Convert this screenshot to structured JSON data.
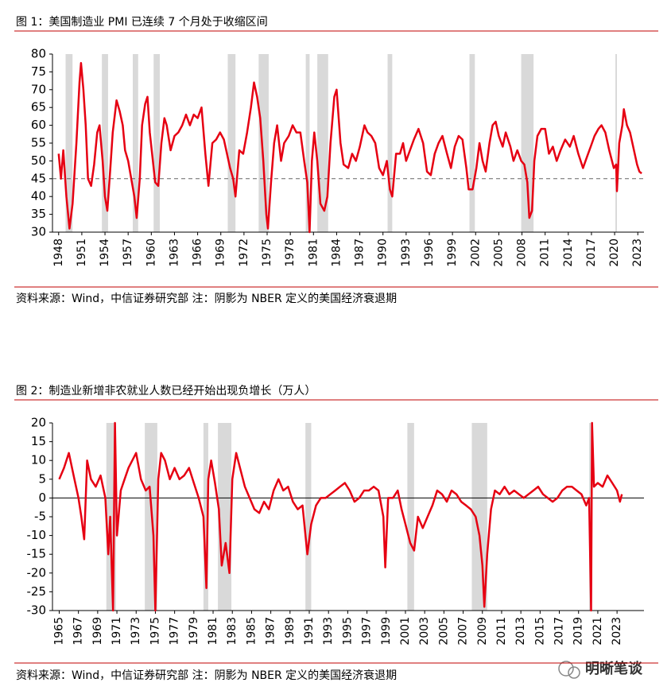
{
  "chart_data": [
    {
      "type": "line",
      "title": "图 1：美国制造业 PMI 已连续 7 个月处于收缩区间",
      "source": "资料来源：Wind，中信证券研究部  注：阴影为 NBER 定义的美国经济衰退期",
      "color": "#e60012",
      "xlim": [
        1947.2,
        2023.8
      ],
      "xticks": [
        1948,
        1951,
        1954,
        1957,
        1960,
        1963,
        1966,
        1969,
        1972,
        1975,
        1978,
        1981,
        1984,
        1987,
        1990,
        1993,
        1996,
        1999,
        2002,
        2005,
        2008,
        2011,
        2014,
        2017,
        2020,
        2023
      ],
      "ylim": [
        30,
        80
      ],
      "yticks": [
        30,
        35,
        40,
        45,
        50,
        55,
        60,
        65,
        70,
        75,
        80
      ],
      "reference_line": {
        "value": 45,
        "style": "dashed"
      },
      "recessions": [
        [
          1948.9,
          1949.8
        ],
        [
          1953.6,
          1954.4
        ],
        [
          1957.6,
          1958.3
        ],
        [
          1960.3,
          1961.1
        ],
        [
          1969.9,
          1970.9
        ],
        [
          1973.9,
          1975.2
        ],
        [
          1980.0,
          1980.5
        ],
        [
          1981.5,
          1982.9
        ],
        [
          1990.6,
          1991.2
        ],
        [
          2001.2,
          2001.9
        ],
        [
          2007.9,
          2009.5
        ],
        [
          2020.1,
          2020.3
        ]
      ],
      "x": [
        1948,
        1948.3,
        1948.6,
        1949.0,
        1949.4,
        1949.8,
        1950.3,
        1950.7,
        1950.9,
        1951.2,
        1951.5,
        1951.8,
        1952.2,
        1952.6,
        1953.0,
        1953.3,
        1953.7,
        1954.0,
        1954.3,
        1954.7,
        1955.0,
        1955.5,
        1955.9,
        1956.3,
        1956.6,
        1957.0,
        1957.4,
        1957.8,
        1958.1,
        1958.5,
        1958.8,
        1959.2,
        1959.5,
        1959.8,
        1960.2,
        1960.5,
        1960.9,
        1961.3,
        1961.7,
        1962.0,
        1962.5,
        1963.0,
        1963.5,
        1964.0,
        1964.5,
        1965.0,
        1965.5,
        1966.0,
        1966.5,
        1967.0,
        1967.4,
        1967.9,
        1968.4,
        1968.9,
        1969.4,
        1969.8,
        1970.2,
        1970.6,
        1970.9,
        1971.4,
        1971.9,
        1972.4,
        1972.9,
        1973.3,
        1973.7,
        1974.1,
        1974.5,
        1974.9,
        1975.1,
        1975.5,
        1975.9,
        1976.3,
        1976.8,
        1977.2,
        1977.8,
        1978.3,
        1978.8,
        1979.3,
        1979.8,
        1980.2,
        1980.5,
        1980.8,
        1981.1,
        1981.5,
        1981.9,
        1982.4,
        1982.8,
        1983.2,
        1983.7,
        1984.0,
        1984.5,
        1984.9,
        1985.5,
        1986.0,
        1986.5,
        1987.0,
        1987.6,
        1988.0,
        1988.5,
        1989.0,
        1989.5,
        1990.0,
        1990.5,
        1990.9,
        1991.2,
        1991.7,
        1992.2,
        1992.6,
        1993.0,
        1993.5,
        1994.0,
        1994.6,
        1995.2,
        1995.7,
        1996.2,
        1996.7,
        1997.2,
        1997.7,
        1998.3,
        1998.8,
        1999.3,
        1999.8,
        2000.3,
        2000.8,
        2001.1,
        2001.6,
        2002.1,
        2002.5,
        2002.9,
        2003.3,
        2003.8,
        2004.2,
        2004.6,
        2005.0,
        2005.5,
        2005.9,
        2006.5,
        2006.9,
        2007.4,
        2007.9,
        2008.3,
        2008.7,
        2008.95,
        2009.3,
        2009.6,
        2010.0,
        2010.5,
        2011.0,
        2011.5,
        2012.0,
        2012.5,
        2013.0,
        2013.6,
        2014.2,
        2014.7,
        2015.3,
        2015.9,
        2016.4,
        2016.9,
        2017.4,
        2017.9,
        2018.3,
        2018.8,
        2019.3,
        2019.9,
        2020.2,
        2020.3,
        2020.6,
        2021.0,
        2021.2,
        2021.6,
        2022.0,
        2022.5,
        2022.9,
        2023.2,
        2023.5
      ],
      "values": [
        52,
        45,
        53,
        40,
        31,
        38,
        55,
        72,
        77.5,
        70,
        60,
        45,
        43,
        49,
        58,
        60,
        50,
        40,
        36,
        48,
        58,
        67,
        64,
        60,
        53,
        50,
        45,
        40,
        34,
        45,
        60,
        66,
        68,
        58,
        50,
        44,
        43,
        55,
        62,
        60,
        53,
        57,
        58,
        60,
        63,
        60,
        63,
        62,
        65,
        52,
        43,
        55,
        56,
        58,
        56,
        52,
        48,
        45,
        40,
        53,
        52,
        58,
        65,
        72,
        68,
        62,
        50,
        35,
        31,
        44,
        55,
        60,
        50,
        55,
        57,
        60,
        58,
        58,
        50,
        44,
        30,
        50,
        58,
        50,
        38,
        36,
        40,
        55,
        68,
        70,
        55,
        49,
        48,
        52,
        50,
        54,
        60,
        58,
        57,
        55,
        48,
        46,
        50,
        42,
        40,
        52,
        52,
        55,
        50,
        53,
        56,
        59,
        55,
        47,
        46,
        52,
        55,
        57,
        52,
        48,
        54,
        57,
        56,
        48,
        42,
        42,
        48,
        55,
        50,
        47,
        55,
        60,
        61,
        57,
        54,
        58,
        54,
        50,
        53,
        50,
        49,
        44,
        34,
        36,
        50,
        57,
        59,
        59,
        52,
        54,
        50,
        53,
        56,
        54,
        57,
        52,
        48,
        51,
        54,
        57,
        59,
        60,
        58,
        53,
        48,
        49,
        41.5,
        55,
        60,
        64.5,
        60,
        58,
        53,
        49,
        47,
        46.5
      ]
    },
    {
      "type": "line",
      "title": "图 2：制造业新增非农就业人数已经开始出现负增长（万人）",
      "source": "资料来源：Wind，中信证券研究部  注：阴影为 NBER 定义的美国经济衰退期",
      "color": "#e60012",
      "xlim": [
        1964.3,
        2025.8
      ],
      "xticks": [
        1965,
        1967,
        1969,
        1971,
        1973,
        1975,
        1977,
        1979,
        1981,
        1983,
        1985,
        1987,
        1989,
        1991,
        1993,
        1995,
        1997,
        1999,
        2001,
        2003,
        2005,
        2007,
        2009,
        2011,
        2013,
        2015,
        2017,
        2019,
        2021,
        2023
      ],
      "ylim": [
        -30,
        20
      ],
      "yticks": [
        -30,
        -25,
        -20,
        -15,
        -10,
        -5,
        0,
        5,
        10,
        15,
        20
      ],
      "reference_line": {
        "value": 0,
        "style": "solid"
      },
      "recessions": [
        [
          1969.9,
          1970.9
        ],
        [
          1973.9,
          1975.2
        ],
        [
          1980.0,
          1980.5
        ],
        [
          1981.5,
          1982.9
        ],
        [
          1990.6,
          1991.2
        ],
        [
          2001.2,
          2001.9
        ],
        [
          2007.9,
          2009.5
        ],
        [
          2020.1,
          2020.3
        ]
      ],
      "x": [
        1965,
        1965.5,
        1966,
        1966.5,
        1967,
        1967.3,
        1967.6,
        1967.9,
        1968.3,
        1968.8,
        1969.3,
        1969.8,
        1970.1,
        1970.3,
        1970.6,
        1970.8,
        1971.0,
        1971.4,
        1971.8,
        1972.2,
        1972.6,
        1973.0,
        1973.5,
        1974.0,
        1974.4,
        1974.8,
        1975.0,
        1975.3,
        1975.6,
        1976.0,
        1976.5,
        1977.0,
        1977.5,
        1978.0,
        1978.5,
        1979.0,
        1979.5,
        1980.0,
        1980.3,
        1980.5,
        1980.8,
        1981.2,
        1981.6,
        1981.9,
        1982.3,
        1982.7,
        1983.0,
        1983.4,
        1983.8,
        1984.3,
        1984.8,
        1985.3,
        1985.8,
        1986.3,
        1986.8,
        1987.3,
        1987.8,
        1988.3,
        1988.8,
        1989.3,
        1989.8,
        1990.3,
        1990.8,
        1991.2,
        1991.7,
        1992.2,
        1992.7,
        1993.2,
        1993.7,
        1994.2,
        1994.7,
        1995.2,
        1995.7,
        1996.2,
        1996.7,
        1997.2,
        1997.7,
        1998.2,
        1998.7,
        1998.9,
        1999.2,
        1999.7,
        2000.2,
        2000.6,
        2001.0,
        2001.5,
        2001.9,
        2002.3,
        2002.8,
        2003.3,
        2003.8,
        2004.3,
        2004.8,
        2005.3,
        2005.8,
        2006.3,
        2006.8,
        2007.3,
        2007.8,
        2008.3,
        2008.7,
        2009.0,
        2009.2,
        2009.5,
        2009.9,
        2010.3,
        2010.8,
        2011.3,
        2011.8,
        2012.3,
        2012.8,
        2013.3,
        2013.8,
        2014.3,
        2014.8,
        2015.3,
        2015.8,
        2016.3,
        2016.8,
        2017.3,
        2017.8,
        2018.3,
        2018.8,
        2019.3,
        2019.8,
        2020.1,
        2020.3,
        2020.4,
        2020.6,
        2021.0,
        2021.5,
        2022.0,
        2022.5,
        2023.0,
        2023.3,
        2023.5
      ],
      "values": [
        5,
        8,
        12,
        6,
        0,
        -5,
        -11,
        10,
        5,
        3,
        6,
        0,
        -15,
        -5,
        -30,
        20,
        -10,
        2,
        5,
        8,
        10,
        12,
        5,
        2,
        3,
        -10,
        -30,
        5,
        12,
        10,
        5,
        8,
        5,
        6,
        8,
        4,
        0,
        -5,
        -24,
        5,
        10,
        4,
        -3,
        -18,
        -12,
        -20,
        5,
        12,
        8,
        3,
        0,
        -3,
        -4,
        -1,
        -3,
        2,
        5,
        2,
        3,
        -1,
        -3,
        -2,
        -15,
        -7,
        -2,
        0,
        0,
        1,
        2,
        3,
        4,
        2,
        -1,
        0,
        2,
        2,
        3,
        2,
        -5,
        -18.5,
        0,
        0,
        2,
        -3,
        -7,
        -12,
        -14,
        -5,
        -8,
        -5,
        -2,
        2,
        1,
        -1,
        2,
        1,
        -1,
        -2,
        -3,
        -5,
        -10,
        -18,
        -29,
        -15,
        -3,
        2,
        1,
        3,
        1,
        2,
        1,
        0,
        1,
        2,
        3,
        1,
        0,
        -1,
        0,
        2,
        3,
        3,
        2,
        1,
        -2,
        0,
        -30,
        20,
        3,
        4,
        3,
        6,
        4,
        2,
        -1,
        1
      ]
    }
  ],
  "watermark": "明晰笔谈"
}
